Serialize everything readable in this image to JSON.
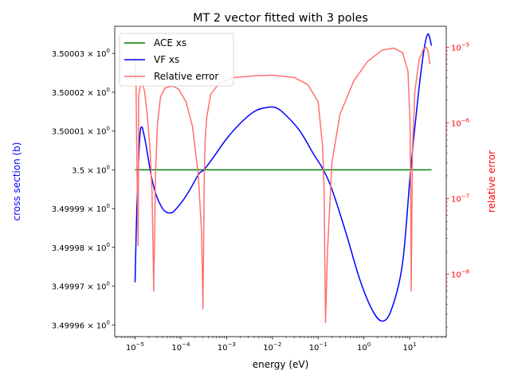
{
  "chart_data": {
    "type": "line",
    "title": "MT 2 vector fitted with 3 poles",
    "xlabel": "energy (eV)",
    "ylabel": "cross section (b)",
    "y2label": "relative error",
    "xscale": "log",
    "y2scale": "log",
    "xlim": [
      3.6e-06,
      63
    ],
    "ylim": [
      3.499957,
      3.500037
    ],
    "y2lim": [
      1.5e-09,
      1.9e-05
    ],
    "grid": false,
    "legend": "top-left",
    "x_ticks": [
      {
        "v": 1e-05,
        "base": "10",
        "exp": "−5"
      },
      {
        "v": 0.0001,
        "base": "10",
        "exp": "−4"
      },
      {
        "v": 0.001,
        "base": "10",
        "exp": "−3"
      },
      {
        "v": 0.01,
        "base": "10",
        "exp": "−2"
      },
      {
        "v": 0.1,
        "base": "10",
        "exp": "−1"
      },
      {
        "v": 1,
        "base": "10",
        "exp": "0"
      },
      {
        "v": 10,
        "base": "10",
        "exp": "1"
      }
    ],
    "y_ticks": [
      {
        "v": 3.50003,
        "main": "3.50003",
        "times": " × 10",
        "exp": "0"
      },
      {
        "v": 3.50002,
        "main": "3.50002",
        "times": " × 10",
        "exp": "0"
      },
      {
        "v": 3.50001,
        "main": "3.50001",
        "times": " × 10",
        "exp": "0"
      },
      {
        "v": 3.5,
        "main": "3.5",
        "times": " × 10",
        "exp": "0"
      },
      {
        "v": 3.49999,
        "main": "3.49999",
        "times": " × 10",
        "exp": "0"
      },
      {
        "v": 3.49998,
        "main": "3.49998",
        "times": " × 10",
        "exp": "0"
      },
      {
        "v": 3.49997,
        "main": "3.49997",
        "times": " × 10",
        "exp": "0"
      },
      {
        "v": 3.49996,
        "main": "3.49996",
        "times": " × 10",
        "exp": "0"
      }
    ],
    "y2_ticks": [
      {
        "v": 1e-05,
        "base": "10",
        "exp": "−5"
      },
      {
        "v": 1e-06,
        "base": "10",
        "exp": "−6"
      },
      {
        "v": 1e-07,
        "base": "10",
        "exp": "−7"
      },
      {
        "v": 1e-08,
        "base": "10",
        "exp": "−8"
      }
    ],
    "colors": {
      "ace": "#008000",
      "vf": "#0000ff",
      "err": "#ff7070",
      "y2axis": "#ff0000",
      "ylabel": "#0000ff"
    },
    "series": [
      {
        "name": "ACE xs",
        "axis": "left",
        "x": [
          1e-05,
          30
        ],
        "y": [
          3.5,
          3.5
        ]
      },
      {
        "name": "VF xs",
        "axis": "left",
        "x": [
          1e-05,
          1.05e-05,
          1.1e-05,
          1.2e-05,
          1.3e-05,
          1.42e-05,
          1.5e-05,
          1.7e-05,
          2e-05,
          2.4e-05,
          3e-05,
          4e-05,
          5e-05,
          6.5e-05,
          8e-05,
          0.00011,
          0.00016,
          0.00025,
          0.00032,
          0.0005,
          0.001,
          0.002,
          0.004,
          0.007,
          0.012,
          0.02,
          0.04,
          0.08,
          0.13,
          0.2,
          0.4,
          0.8,
          1.5,
          2.5,
          4,
          7,
          10.5,
          15,
          20,
          25,
          30
        ],
        "y": [
          3.499971,
          3.499982,
          3.499991,
          3.500003,
          3.50001,
          3.500011,
          3.50001,
          3.500007,
          3.500002,
          3.499997,
          3.499993,
          3.49999,
          3.499989,
          3.499989,
          3.49999,
          3.499992,
          3.499995,
          3.499999,
          3.5,
          3.500003,
          3.500008,
          3.500012,
          3.500015,
          3.500016,
          3.500016,
          3.500014,
          3.50001,
          3.500004,
          3.5,
          3.499995,
          3.499984,
          3.499972,
          3.499964,
          3.499961,
          3.499964,
          3.499976,
          3.5,
          3.500018,
          3.50003,
          3.500035,
          3.500032
        ]
      },
      {
        "name": "Relative error",
        "axis": "right",
        "x": [
          1e-05,
          1.05e-05,
          1.1e-05,
          1.13e-05,
          1.17e-05,
          1.2e-05,
          1.3e-05,
          1.45e-05,
          1.6e-05,
          1.8e-05,
          2.1e-05,
          2.35e-05,
          2.5e-05,
          2.55e-05,
          2.65e-05,
          2.8e-05,
          3.1e-05,
          3.6e-05,
          4.5e-05,
          6.5e-05,
          9e-05,
          0.00013,
          0.00018,
          0.00024,
          0.000285,
          0.000305,
          0.000315,
          0.000325,
          0.00034,
          0.00037,
          0.00045,
          0.0007,
          0.0015,
          0.004,
          0.01,
          0.03,
          0.06,
          0.1,
          0.125,
          0.135,
          0.145,
          0.16,
          0.2,
          0.3,
          0.6,
          1.2,
          2.5,
          4.5,
          7,
          9.2,
          10.2,
          10.5,
          10.8,
          11.5,
          13,
          16,
          20,
          23,
          25,
          28
        ],
        "y": [
          7.6e-06,
          3e-06,
          2.8e-07,
          1.1e-07,
          2.4e-08,
          2.3e-06,
          3.1e-06,
          3.3e-06,
          2.7e-06,
          1.5e-06,
          5e-07,
          1.2e-07,
          1.5e-08,
          6e-09,
          2.5e-08,
          2.2e-07,
          1e-06,
          2.2e-06,
          2.9e-06,
          3.1e-06,
          2.8e-06,
          1.9e-06,
          9e-07,
          2.1e-07,
          3.5e-08,
          3.5e-09,
          2.5e-08,
          2e-07,
          6e-07,
          1.2e-06,
          2.4e-06,
          3.4e-06,
          4e-06,
          4.2e-06,
          4.3e-06,
          4e-06,
          3.2e-06,
          1.9e-06,
          5e-07,
          1.3e-07,
          2.3e-09,
          2e-08,
          3e-07,
          1.3e-06,
          3.6e-06,
          6.5e-06,
          9.2e-06,
          9.8e-06,
          8.5e-06,
          4.8e-06,
          1e-06,
          1.5e-07,
          6e-09,
          4.5e-07,
          2.6e-06,
          6.8e-06,
          9.5e-06,
          1e-05,
          9e-06,
          6e-06
        ]
      }
    ]
  }
}
